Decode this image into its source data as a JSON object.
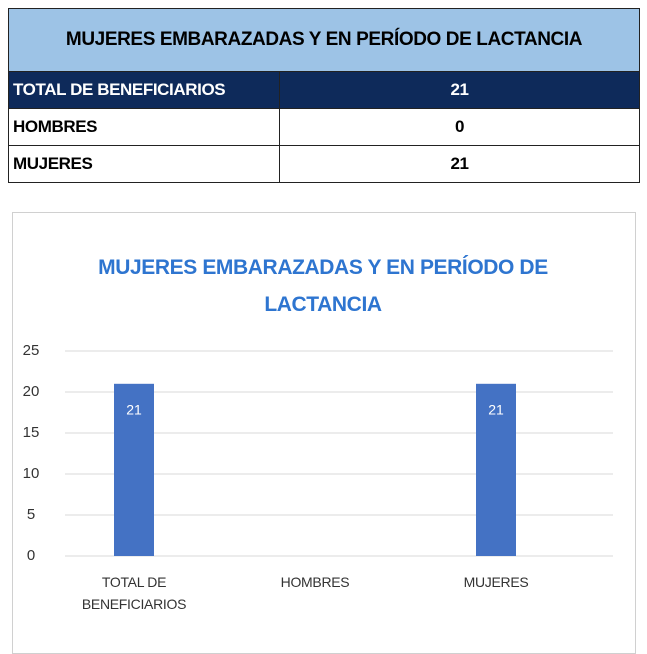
{
  "table": {
    "title": "MUJERES EMBARAZADAS Y EN PERÍODO DE LACTANCIA",
    "rows": [
      [
        "TOTAL DE BENEFICIARIOS",
        21
      ],
      [
        "HOMBRES",
        0
      ],
      [
        "MUJERES",
        21
      ]
    ]
  },
  "chart_data": {
    "type": "bar",
    "title": "MUJERES EMBARAZADAS Y EN PERÍODO DE LACTANCIA",
    "categories": [
      "TOTAL DE BENEFICIARIOS",
      "HOMBRES",
      "MUJERES"
    ],
    "values": [
      21,
      0,
      21
    ],
    "color": "#4472c4",
    "ylim": [
      0,
      25
    ],
    "yticks": [
      0,
      5,
      10,
      15,
      20,
      25
    ],
    "grid": true
  }
}
